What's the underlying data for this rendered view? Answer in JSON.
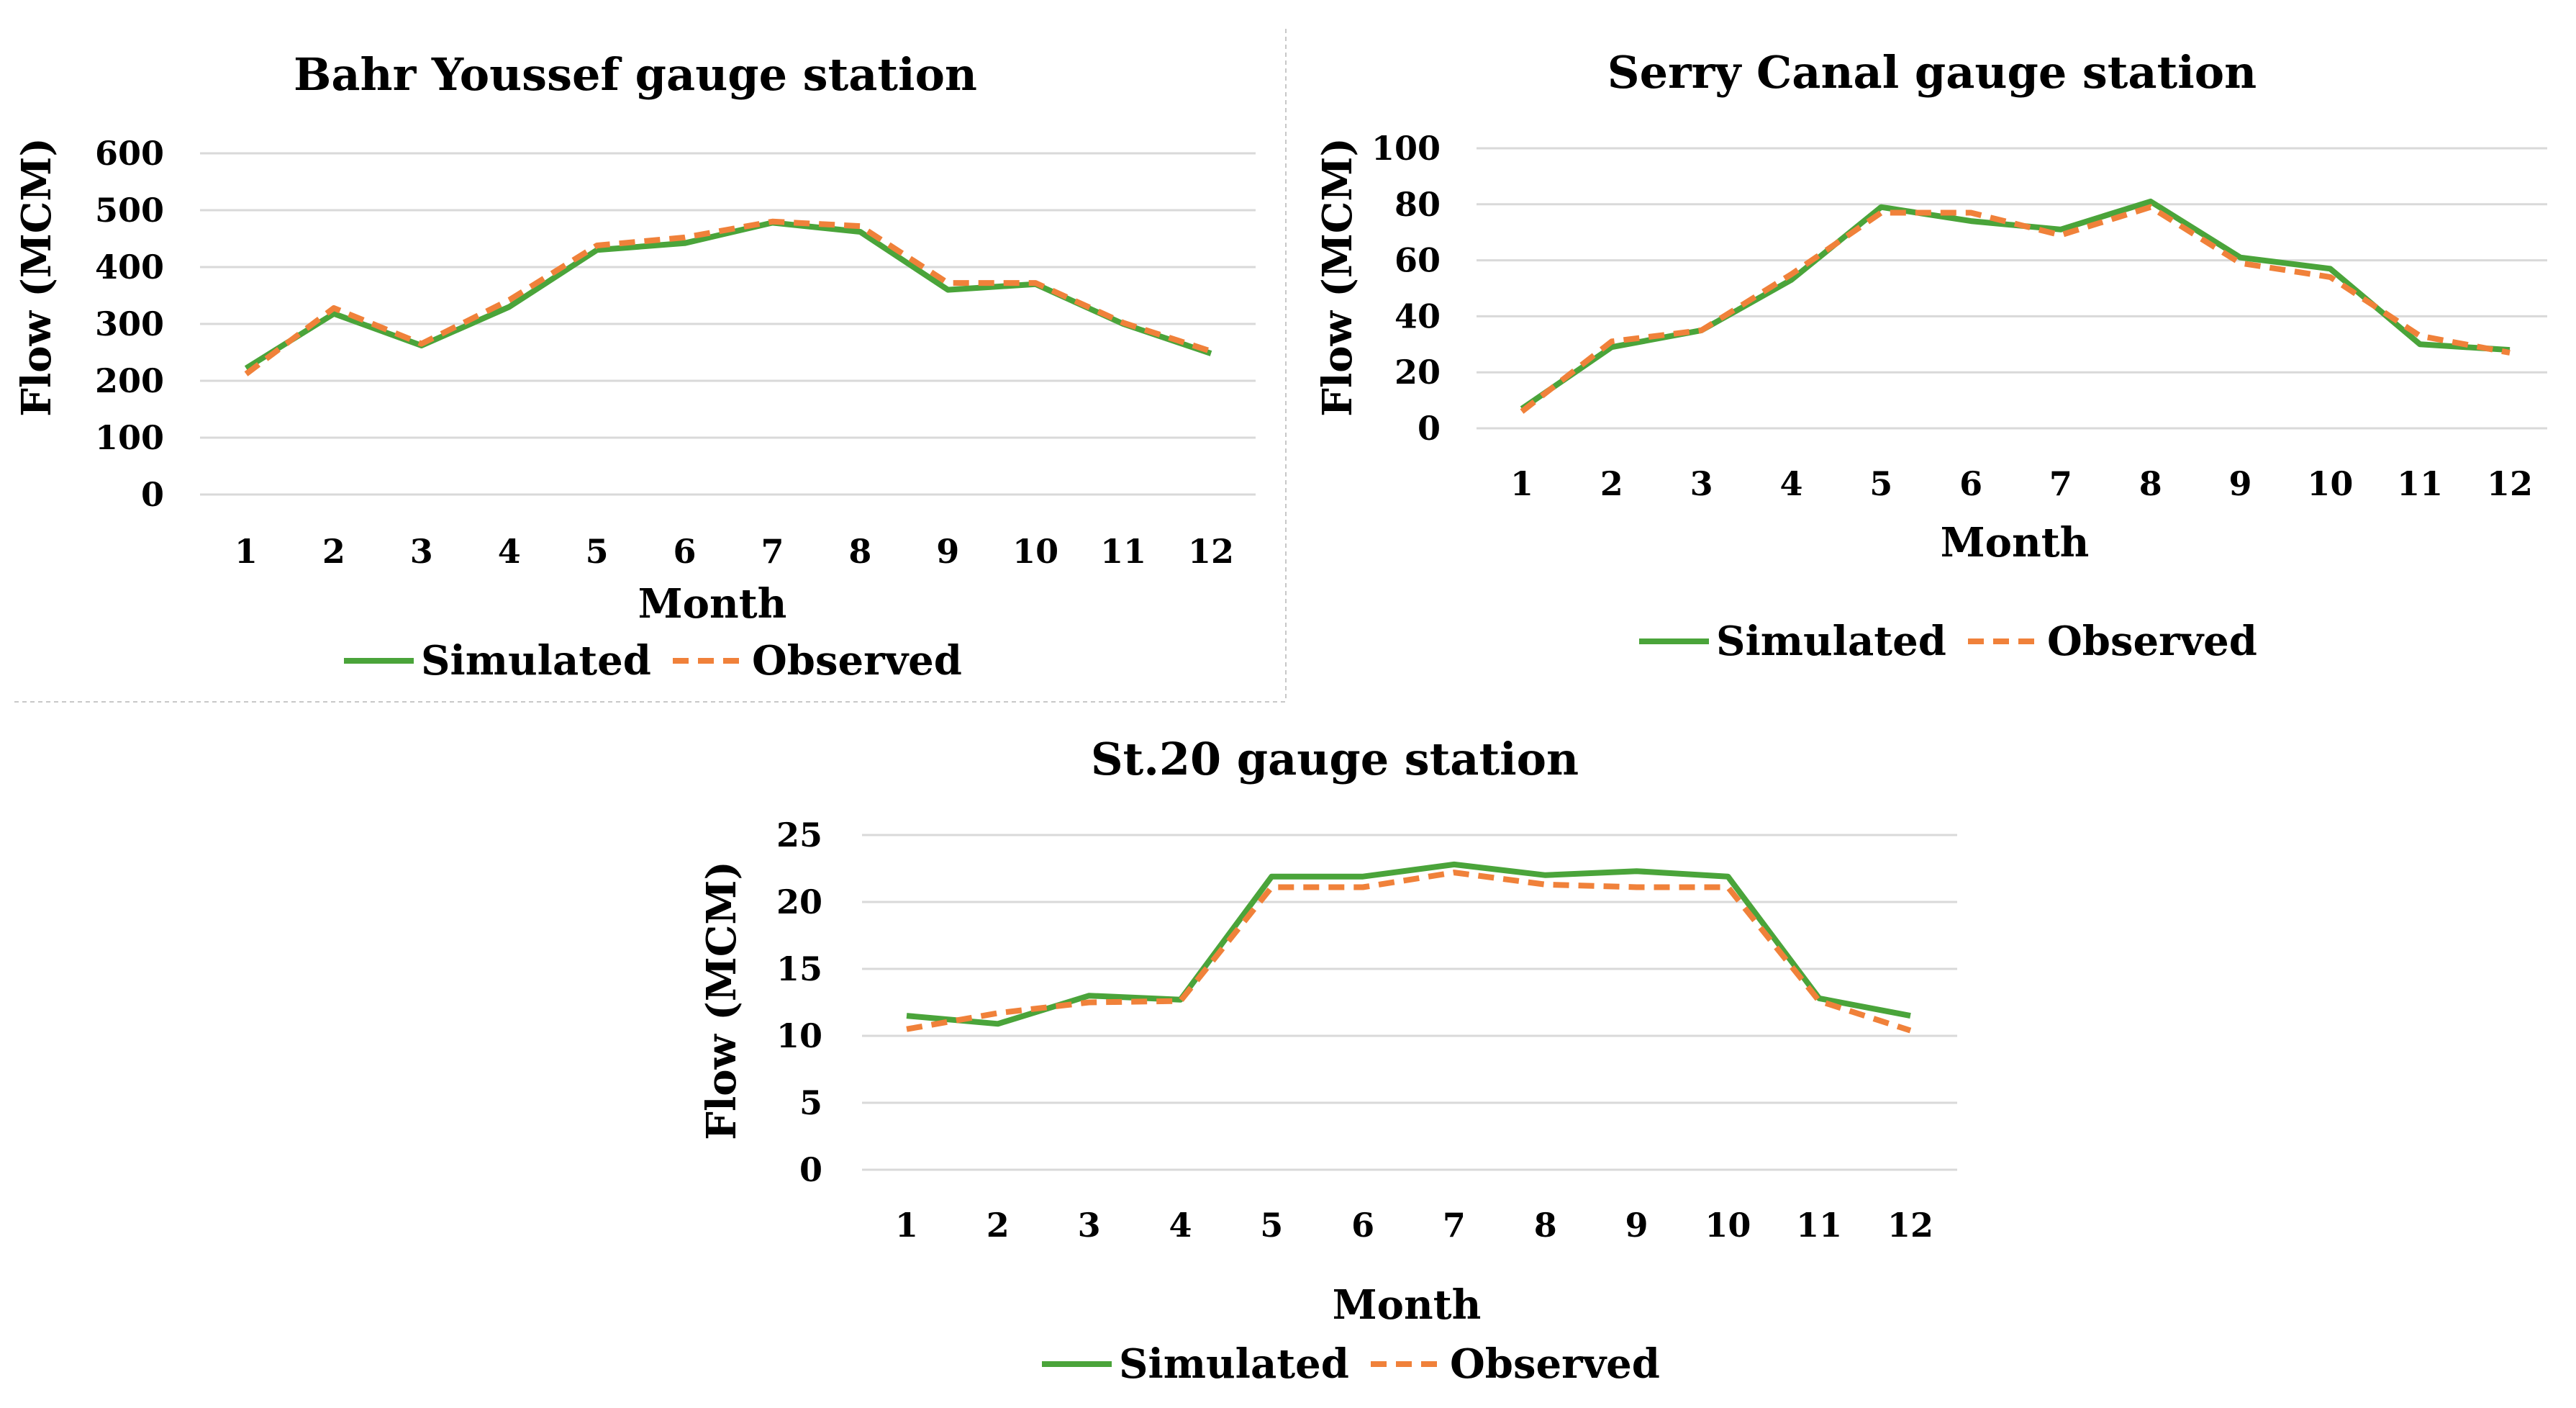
{
  "chart_data": [
    {
      "type": "line",
      "title": "Bahr Youssef gauge station",
      "xlabel": "Month",
      "ylabel": "Flow (MCM)",
      "categories": [
        "1",
        "2",
        "3",
        "4",
        "5",
        "6",
        "7",
        "8",
        "9",
        "10",
        "11",
        "12"
      ],
      "yticks": [
        "0",
        "100",
        "200",
        "300",
        "400",
        "500",
        "600"
      ],
      "ylim": [
        0,
        600
      ],
      "series": [
        {
          "name": "Simulated",
          "values": [
            222,
            318,
            262,
            330,
            430,
            442,
            478,
            462,
            360,
            370,
            300,
            248
          ]
        },
        {
          "name": "Observed",
          "values": [
            212,
            328,
            265,
            342,
            438,
            452,
            480,
            472,
            372,
            372,
            302,
            252
          ]
        }
      ],
      "legend": [
        "Simulated",
        "Observed"
      ],
      "colors": {
        "Simulated": "#4aa43a",
        "Observed": "#f0813a"
      }
    },
    {
      "type": "line",
      "title": "Serry Canal gauge station",
      "xlabel": "Month",
      "ylabel": "Flow (MCM)",
      "categories": [
        "1",
        "2",
        "3",
        "4",
        "5",
        "6",
        "7",
        "8",
        "9",
        "10",
        "11",
        "12"
      ],
      "yticks": [
        "0",
        "20",
        "40",
        "60",
        "80",
        "100"
      ],
      "ylim": [
        0,
        100
      ],
      "series": [
        {
          "name": "Simulated",
          "values": [
            7,
            29,
            35,
            53,
            79,
            74,
            71,
            81,
            61,
            57,
            30,
            28
          ]
        },
        {
          "name": "Observed",
          "values": [
            6,
            31,
            35,
            55,
            77,
            77,
            69,
            79,
            59,
            54,
            33,
            27
          ]
        }
      ],
      "legend": [
        "Simulated",
        "Observed"
      ],
      "colors": {
        "Simulated": "#4aa43a",
        "Observed": "#f0813a"
      }
    },
    {
      "type": "line",
      "title": "St.20 gauge station",
      "xlabel": "Month",
      "ylabel": "Flow (MCM)",
      "categories": [
        "1",
        "2",
        "3",
        "4",
        "5",
        "6",
        "7",
        "8",
        "9",
        "10",
        "11",
        "12"
      ],
      "yticks": [
        "0",
        "5",
        "10",
        "15",
        "20",
        "25"
      ],
      "ylim": [
        0,
        25
      ],
      "series": [
        {
          "name": "Simulated",
          "values": [
            11.5,
            10.9,
            13.0,
            12.7,
            21.9,
            21.9,
            22.8,
            22.0,
            22.3,
            21.9,
            12.8,
            11.5
          ]
        },
        {
          "name": "Observed",
          "values": [
            10.5,
            11.7,
            12.5,
            12.6,
            21.1,
            21.1,
            22.2,
            21.3,
            21.1,
            21.1,
            12.6,
            10.4
          ]
        }
      ],
      "legend": [
        "Simulated",
        "Observed"
      ],
      "colors": {
        "Simulated": "#4aa43a",
        "Observed": "#f0813a"
      }
    }
  ]
}
